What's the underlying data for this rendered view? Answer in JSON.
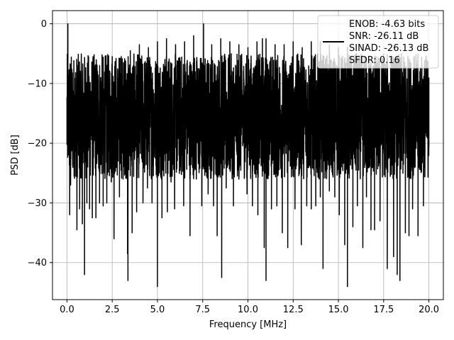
{
  "chart_data": {
    "type": "line",
    "title": "",
    "xlabel": "Frequency [MHz]",
    "ylabel": "PSD [dB]",
    "xlim": [
      -0.8,
      20.8
    ],
    "ylim": [
      -46.2,
      2.2
    ],
    "x_ticks": [
      0.0,
      2.5,
      5.0,
      7.5,
      10.0,
      12.5,
      15.0,
      17.5,
      20.0
    ],
    "x_tick_labels": [
      "0.0",
      "2.5",
      "5.0",
      "7.5",
      "10.0",
      "12.5",
      "15.0",
      "17.5",
      "20.0"
    ],
    "y_ticks": [
      0,
      -10,
      -20,
      -30,
      -40
    ],
    "y_tick_labels": [
      "0",
      "−10",
      "−20",
      "−30",
      "−40"
    ],
    "grid": true,
    "legend_position": "top-right",
    "series_color": "#000000",
    "series": [
      {
        "name": "",
        "x_range": [
          0.0,
          20.0
        ],
        "noise_band": [
          -26,
          -5
        ],
        "points": [
          [
            0.0,
            -20.2
          ],
          [
            0.02,
            -12.0
          ],
          [
            0.05,
            0.0
          ],
          [
            0.08,
            -13.0
          ],
          [
            0.1,
            -19.0
          ],
          [
            0.15,
            -32.0
          ],
          [
            0.2,
            -27.0
          ],
          [
            0.25,
            -9.0
          ],
          [
            0.4,
            -13.0
          ],
          [
            0.55,
            -34.5
          ],
          [
            0.7,
            -31.0
          ],
          [
            0.85,
            -33.5
          ],
          [
            0.97,
            -42.0
          ],
          [
            1.1,
            -30.0
          ],
          [
            1.25,
            -31.0
          ],
          [
            1.4,
            -32.5
          ],
          [
            1.6,
            -32.5
          ],
          [
            1.8,
            -30.0
          ],
          [
            2.0,
            -30.5
          ],
          [
            2.2,
            -30.0
          ],
          [
            2.45,
            -26.5
          ],
          [
            2.6,
            -36.0
          ],
          [
            2.9,
            -29.0
          ],
          [
            3.1,
            -26.0
          ],
          [
            3.35,
            -38.5
          ],
          [
            3.37,
            -43.0
          ],
          [
            3.6,
            -35.0
          ],
          [
            3.85,
            -31.5
          ],
          [
            4.2,
            -30.0
          ],
          [
            4.45,
            -27.5
          ],
          [
            4.7,
            -30.0
          ],
          [
            5.0,
            -44.0
          ],
          [
            5.25,
            -32.5
          ],
          [
            5.55,
            -31.5
          ],
          [
            5.75,
            -26.5
          ],
          [
            5.95,
            -31.0
          ],
          [
            6.25,
            -23.0
          ],
          [
            6.45,
            -30.5
          ],
          [
            6.8,
            -35.5
          ],
          [
            7.15,
            -26.0
          ],
          [
            7.45,
            -30.5
          ],
          [
            7.8,
            -28.5
          ],
          [
            8.1,
            -30.5
          ],
          [
            8.3,
            -35.5
          ],
          [
            8.55,
            -42.5
          ],
          [
            8.8,
            -27.5
          ],
          [
            9.2,
            -30.5
          ],
          [
            9.5,
            -26.0
          ],
          [
            9.95,
            -28.5
          ],
          [
            10.25,
            -30.5
          ],
          [
            10.55,
            -32.0
          ],
          [
            10.9,
            -37.5
          ],
          [
            11.0,
            -43.0
          ],
          [
            11.3,
            -31.0
          ],
          [
            11.6,
            -30.5
          ],
          [
            11.9,
            -35.0
          ],
          [
            12.2,
            -37.5
          ],
          [
            12.6,
            -31.0
          ],
          [
            12.95,
            -37.0
          ],
          [
            13.25,
            -30.5
          ],
          [
            13.5,
            -31.0
          ],
          [
            13.75,
            -30.5
          ],
          [
            14.0,
            -29.0
          ],
          [
            14.15,
            -41.0
          ],
          [
            14.5,
            -28.0
          ],
          [
            14.8,
            -29.0
          ],
          [
            15.05,
            -32.0
          ],
          [
            15.35,
            -37.0
          ],
          [
            15.5,
            -44.0
          ],
          [
            15.8,
            -34.0
          ],
          [
            16.05,
            -30.5
          ],
          [
            16.35,
            -37.5
          ],
          [
            16.55,
            -29.0
          ],
          [
            16.8,
            -34.5
          ],
          [
            17.0,
            -34.5
          ],
          [
            17.3,
            -33.0
          ],
          [
            17.7,
            -41.0
          ],
          [
            18.05,
            -39.0
          ],
          [
            18.25,
            -42.0
          ],
          [
            18.4,
            -43.0
          ],
          [
            18.7,
            -35.0
          ],
          [
            18.9,
            -35.5
          ],
          [
            19.1,
            -31.0
          ],
          [
            19.4,
            -35.5
          ],
          [
            19.7,
            -30.5
          ],
          [
            20.0,
            -20.5
          ],
          [
            0.03,
            -10.5
          ],
          [
            0.6,
            -9.0
          ],
          [
            1.0,
            -8.0
          ],
          [
            1.5,
            -6.5
          ],
          [
            2.0,
            -6.5
          ],
          [
            2.5,
            -5.5
          ],
          [
            3.0,
            -5.5
          ],
          [
            3.5,
            -4.5
          ],
          [
            4.0,
            -3.5
          ],
          [
            4.5,
            -4.0
          ],
          [
            5.0,
            -3.0
          ],
          [
            5.5,
            -2.5
          ],
          [
            6.0,
            -3.5
          ],
          [
            6.5,
            -3.0
          ],
          [
            7.0,
            -2.0
          ],
          [
            7.55,
            0.0
          ],
          [
            8.0,
            -3.5
          ],
          [
            8.5,
            -2.5
          ],
          [
            9.0,
            -3.0
          ],
          [
            9.5,
            -3.5
          ],
          [
            10.0,
            -4.0
          ],
          [
            10.5,
            -3.0
          ],
          [
            10.8,
            -2.5
          ],
          [
            11.0,
            -2.5
          ],
          [
            11.5,
            -3.5
          ],
          [
            12.0,
            -3.5
          ],
          [
            12.5,
            -3.0
          ],
          [
            13.0,
            -4.0
          ],
          [
            13.5,
            -3.0
          ],
          [
            14.0,
            -3.0
          ],
          [
            14.5,
            -3.5
          ],
          [
            15.0,
            -4.0
          ],
          [
            15.5,
            -4.0
          ],
          [
            16.0,
            -5.0
          ],
          [
            16.5,
            -5.5
          ],
          [
            17.0,
            -5.5
          ],
          [
            17.5,
            -5.0
          ],
          [
            18.0,
            -5.5
          ],
          [
            18.5,
            -6.5
          ],
          [
            19.0,
            -6.5
          ],
          [
            19.5,
            -8.0
          ],
          [
            20.0,
            -9.0
          ]
        ]
      }
    ],
    "legend": {
      "lines": [
        "ENOB: -4.63 bits",
        "SNR: -26.11 dB",
        "SINAD: -26.13 dB",
        "SFDR: 0.16"
      ]
    }
  }
}
